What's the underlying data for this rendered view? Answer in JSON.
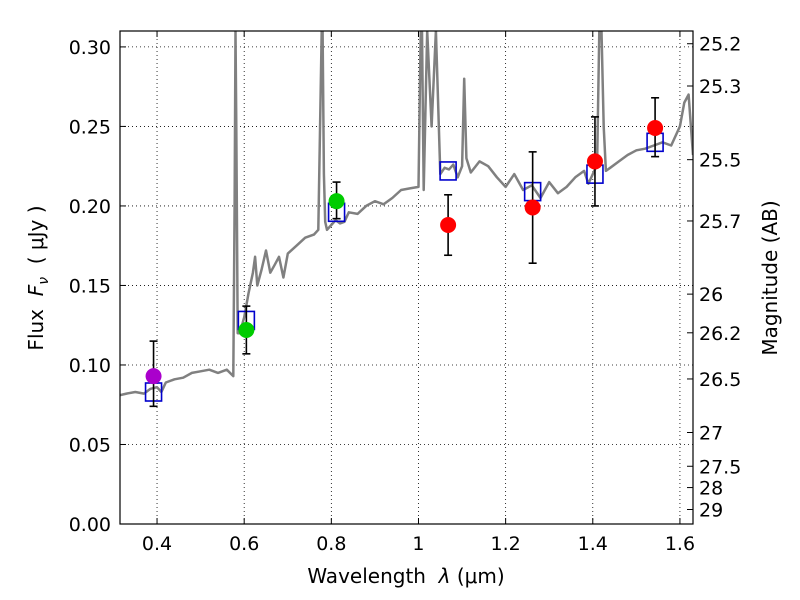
{
  "chart_data": {
    "type": "scatter",
    "xlabel": "Wavelength  λ (μm)",
    "ylabel": "Flux  F_ν  ( μJy )",
    "ylabel_parts": {
      "prefix": "Flux  ",
      "symbol": "F",
      "subscript": "ν",
      "suffix": "  ( μJy )"
    },
    "xlabel_parts": {
      "prefix": "Wavelength  ",
      "symbol": "λ",
      "suffix": " (μm)"
    },
    "y2label": "Magnitude (AB)",
    "xlim": [
      0.315,
      1.63
    ],
    "ylim": [
      0.0,
      0.31
    ],
    "grid": true,
    "x_ticks": [
      0.4,
      0.6,
      0.8,
      1.0,
      1.2,
      1.4,
      1.6
    ],
    "x_tick_labels": [
      "0.4",
      "0.6",
      "0.8",
      "1",
      "1.2",
      "1.4",
      "1.6"
    ],
    "y_ticks": [
      0.0,
      0.05,
      0.1,
      0.15,
      0.2,
      0.25,
      0.3
    ],
    "y_tick_labels": [
      "0.00",
      "0.05",
      "0.10",
      "0.15",
      "0.20",
      "0.25",
      "0.30"
    ],
    "mag_ticks": [
      25.2,
      25.3,
      25.5,
      25.7,
      26,
      26.2,
      26.5,
      27,
      27.5,
      28,
      29
    ],
    "mag_tick_labels": [
      "25.2",
      "25.3",
      "25.5",
      "25.7",
      "26",
      "26.2",
      "26.5",
      "27",
      "27.5",
      "28",
      "29"
    ],
    "series": [
      {
        "name": "model SED",
        "style": "line",
        "color": "#808080",
        "x": [
          0.315,
          0.33,
          0.35,
          0.37,
          0.385,
          0.4,
          0.41,
          0.42,
          0.44,
          0.46,
          0.48,
          0.5,
          0.52,
          0.54,
          0.56,
          0.575,
          0.578,
          0.58,
          0.582,
          0.585,
          0.59,
          0.6,
          0.61,
          0.62,
          0.625,
          0.63,
          0.64,
          0.65,
          0.66,
          0.67,
          0.68,
          0.69,
          0.7,
          0.72,
          0.74,
          0.76,
          0.77,
          0.778,
          0.78,
          0.783,
          0.786,
          0.79,
          0.8,
          0.81,
          0.82,
          0.83,
          0.84,
          0.86,
          0.88,
          0.9,
          0.92,
          0.94,
          0.96,
          0.98,
          1.0,
          1.005,
          1.008,
          1.012,
          1.02,
          1.03,
          1.04,
          1.05,
          1.06,
          1.07,
          1.08,
          1.09,
          1.1,
          1.105,
          1.11,
          1.12,
          1.14,
          1.16,
          1.18,
          1.2,
          1.22,
          1.24,
          1.26,
          1.28,
          1.3,
          1.32,
          1.34,
          1.36,
          1.38,
          1.39,
          1.4,
          1.41,
          1.415,
          1.42,
          1.425,
          1.43,
          1.44,
          1.46,
          1.48,
          1.5,
          1.52,
          1.54,
          1.56,
          1.58,
          1.6,
          1.61,
          1.62,
          1.63
        ],
        "y": [
          0.081,
          0.082,
          0.083,
          0.082,
          0.085,
          0.086,
          0.083,
          0.089,
          0.091,
          0.092,
          0.095,
          0.096,
          0.097,
          0.095,
          0.097,
          0.093,
          0.2,
          0.31,
          0.25,
          0.12,
          0.12,
          0.13,
          0.145,
          0.158,
          0.168,
          0.15,
          0.16,
          0.172,
          0.158,
          0.163,
          0.168,
          0.155,
          0.17,
          0.175,
          0.18,
          0.182,
          0.185,
          0.31,
          0.31,
          0.22,
          0.19,
          0.185,
          0.188,
          0.191,
          0.189,
          0.19,
          0.196,
          0.195,
          0.2,
          0.203,
          0.201,
          0.205,
          0.21,
          0.211,
          0.212,
          0.31,
          0.31,
          0.21,
          0.31,
          0.25,
          0.31,
          0.22,
          0.224,
          0.223,
          0.226,
          0.218,
          0.225,
          0.28,
          0.23,
          0.221,
          0.228,
          0.225,
          0.218,
          0.212,
          0.22,
          0.21,
          0.213,
          0.205,
          0.215,
          0.208,
          0.212,
          0.218,
          0.222,
          0.214,
          0.22,
          0.226,
          0.31,
          0.31,
          0.25,
          0.222,
          0.224,
          0.228,
          0.232,
          0.235,
          0.236,
          0.238,
          0.24,
          0.238,
          0.25,
          0.265,
          0.27,
          0.232
        ]
      },
      {
        "name": "model photometry",
        "style": "open-square",
        "color": "#0000cc",
        "x": [
          0.392,
          0.605,
          0.812,
          1.068,
          1.262,
          1.405,
          1.543
        ],
        "y": [
          0.083,
          0.128,
          0.196,
          0.222,
          0.209,
          0.22,
          0.24
        ]
      },
      {
        "name": "violet point",
        "style": "filled-circle",
        "color": "#aa00cc",
        "x": [
          0.392
        ],
        "y": [
          0.093
        ],
        "yerr": [
          [
            0.074,
            0.115
          ]
        ]
      },
      {
        "name": "green points",
        "style": "filled-circle",
        "color": "#00cc00",
        "x": [
          0.605,
          0.812
        ],
        "y": [
          0.122,
          0.203
        ],
        "yerr": [
          [
            0.107,
            0.137
          ],
          [
            0.192,
            0.215
          ]
        ]
      },
      {
        "name": "red points",
        "style": "filled-circle",
        "color": "#ff0000",
        "x": [
          1.068,
          1.262,
          1.405,
          1.543
        ],
        "y": [
          0.188,
          0.199,
          0.228,
          0.249
        ],
        "yerr": [
          [
            0.169,
            0.207
          ],
          [
            0.164,
            0.234
          ],
          [
            0.2,
            0.256
          ],
          [
            0.231,
            0.268
          ]
        ]
      }
    ]
  }
}
